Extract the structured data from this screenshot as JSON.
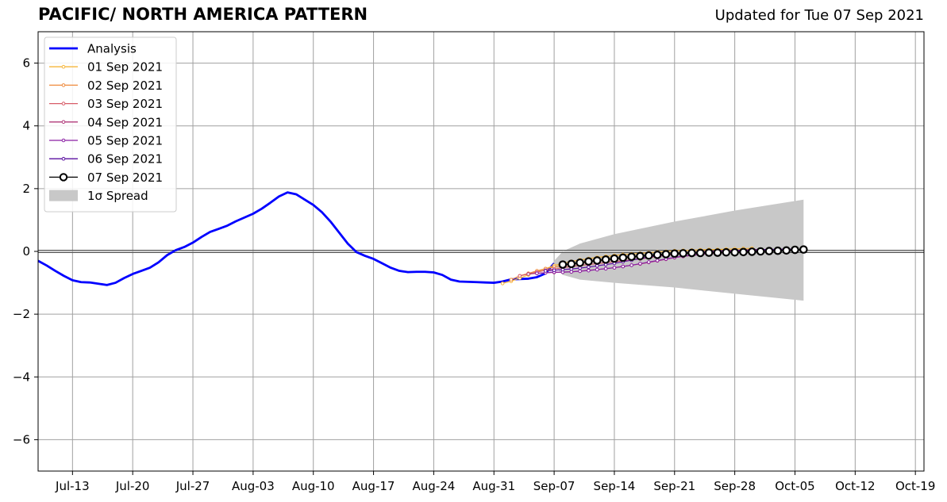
{
  "chart_data": {
    "type": "line",
    "title": "PACIFIC/ NORTH AMERICA PATTERN",
    "subtitle": "Updated for Tue 07 Sep 2021",
    "xlabel": "",
    "ylabel": "",
    "x_tick_labels": [
      "Jul-13",
      "Jul-20",
      "Jul-27",
      "Aug-03",
      "Aug-10",
      "Aug-17",
      "Aug-24",
      "Aug-31",
      "Sep-07",
      "Sep-14",
      "Sep-21",
      "Sep-28",
      "Oct-05",
      "Oct-12",
      "Oct-19"
    ],
    "x_tick_dates": [
      "2021-07-13",
      "2021-07-20",
      "2021-07-27",
      "2021-08-03",
      "2021-08-10",
      "2021-08-17",
      "2021-08-24",
      "2021-08-31",
      "2021-09-07",
      "2021-09-14",
      "2021-09-21",
      "2021-09-28",
      "2021-10-05",
      "2021-10-12",
      "2021-10-19"
    ],
    "xlim": [
      "2021-07-09",
      "2021-10-20"
    ],
    "ylim": [
      -7,
      7
    ],
    "y_ticks": [
      -6,
      -4,
      -2,
      0,
      2,
      4,
      6
    ],
    "y_tick_labels": [
      "−6",
      "−4",
      "−2",
      "0",
      "2",
      "4",
      "6"
    ],
    "grid": true,
    "legend_position": "top-left",
    "legend": [
      "Analysis",
      "01 Sep 2021",
      "02 Sep 2021",
      "03 Sep 2021",
      "04 Sep 2021",
      "05 Sep 2021",
      "06 Sep 2021",
      "07 Sep 2021",
      "1σ Spread"
    ],
    "analysis": {
      "name": "Analysis",
      "color": "#0000ff",
      "start": "2021-07-09",
      "values": [
        -0.3,
        -0.45,
        -0.62,
        -0.78,
        -0.92,
        -0.98,
        -0.99,
        -1.03,
        -1.07,
        -1.0,
        -0.85,
        -0.72,
        -0.62,
        -0.52,
        -0.35,
        -0.12,
        0.04,
        0.14,
        0.28,
        0.46,
        0.62,
        0.72,
        0.82,
        0.96,
        1.08,
        1.2,
        1.36,
        1.55,
        1.75,
        1.88,
        1.82,
        1.65,
        1.48,
        1.25,
        0.95,
        0.6,
        0.25,
        -0.02,
        -0.14,
        -0.24,
        -0.38,
        -0.52,
        -0.62,
        -0.66,
        -0.65,
        -0.65,
        -0.67,
        -0.75,
        -0.9,
        -0.96,
        -0.97,
        -0.98,
        -0.99,
        -1.0,
        -0.96,
        -0.89,
        -0.88,
        -0.87,
        -0.82,
        -0.7,
        -0.38
      ]
    },
    "forecasts": [
      {
        "name": "01 Sep 2021",
        "color": "#f6b63a",
        "start": "2021-09-01",
        "values": [
          -1.02,
          -0.95,
          -0.85,
          -0.75,
          -0.65,
          -0.55,
          -0.45,
          -0.38,
          -0.32,
          -0.27,
          -0.23,
          -0.19,
          -0.16,
          -0.13,
          -0.1,
          -0.08,
          -0.06,
          -0.04,
          -0.02,
          0.0,
          0.02,
          0.03,
          0.04,
          0.05,
          0.06,
          0.06,
          0.07,
          0.08,
          0.09,
          0.1
        ]
      },
      {
        "name": "02 Sep 2021",
        "color": "#ef8a3c",
        "start": "2021-09-02",
        "values": [
          -0.9,
          -0.78,
          -0.7,
          -0.62,
          -0.55,
          -0.5,
          -0.45,
          -0.41,
          -0.38,
          -0.34,
          -0.31,
          -0.28,
          -0.25,
          -0.22,
          -0.19,
          -0.16,
          -0.13,
          -0.1,
          -0.08,
          -0.06,
          -0.04,
          -0.02,
          0.0,
          0.01,
          0.02,
          0.03,
          0.04,
          0.05,
          0.06,
          0.06
        ]
      },
      {
        "name": "03 Sep 2021",
        "color": "#d75c68",
        "start": "2021-09-03",
        "values": [
          -0.78,
          -0.72,
          -0.66,
          -0.6,
          -0.56,
          -0.52,
          -0.48,
          -0.45,
          -0.42,
          -0.39,
          -0.36,
          -0.33,
          -0.3,
          -0.27,
          -0.24,
          -0.2,
          -0.16,
          -0.13,
          -0.1,
          -0.07,
          -0.05,
          -0.03,
          -0.02,
          0.0,
          0.01,
          0.02,
          0.03,
          0.04,
          0.05,
          0.06
        ]
      },
      {
        "name": "04 Sep 2021",
        "color": "#b0397a",
        "start": "2021-09-04",
        "values": [
          -0.72,
          -0.7,
          -0.68,
          -0.67,
          -0.66,
          -0.65,
          -0.63,
          -0.6,
          -0.58,
          -0.55,
          -0.52,
          -0.48,
          -0.44,
          -0.4,
          -0.35,
          -0.3,
          -0.25,
          -0.2,
          -0.16,
          -0.13,
          -0.1,
          -0.08,
          -0.06,
          -0.04,
          -0.02,
          0.0,
          0.01,
          0.02,
          0.03,
          0.04
        ]
      },
      {
        "name": "05 Sep 2021",
        "color": "#8a1fa3",
        "start": "2021-09-05",
        "values": [
          -0.7,
          -0.68,
          -0.66,
          -0.66,
          -0.65,
          -0.63,
          -0.61,
          -0.58,
          -0.55,
          -0.52,
          -0.48,
          -0.44,
          -0.39,
          -0.34,
          -0.29,
          -0.24,
          -0.19,
          -0.15,
          -0.12,
          -0.09,
          -0.06,
          -0.04,
          -0.02,
          0.0,
          0.01,
          0.02,
          0.03,
          0.04,
          0.05,
          0.06
        ]
      },
      {
        "name": "06 Sep 2021",
        "color": "#5a0fa0",
        "start": "2021-09-06",
        "values": [
          -0.62,
          -0.6,
          -0.58,
          -0.56,
          -0.53,
          -0.5,
          -0.46,
          -0.42,
          -0.38,
          -0.33,
          -0.28,
          -0.23,
          -0.18,
          -0.14,
          -0.11,
          -0.08,
          -0.06,
          -0.04,
          -0.02,
          0.0,
          0.01,
          0.02,
          0.03,
          0.04,
          0.05,
          0.06,
          0.06,
          0.07,
          0.07,
          0.08
        ]
      },
      {
        "name": "07 Sep 2021",
        "color": "#000000",
        "start": "2021-09-08",
        "marker": "open-circle",
        "values": [
          -0.42,
          -0.4,
          -0.36,
          -0.32,
          -0.29,
          -0.26,
          -0.23,
          -0.2,
          -0.17,
          -0.15,
          -0.13,
          -0.11,
          -0.09,
          -0.07,
          -0.06,
          -0.05,
          -0.05,
          -0.04,
          -0.04,
          -0.03,
          -0.03,
          -0.02,
          -0.01,
          0.0,
          0.01,
          0.02,
          0.03,
          0.05,
          0.06
        ]
      }
    ],
    "spread": {
      "name": "1σ Spread",
      "color": "#c8c8c8",
      "x": [
        "2021-09-07",
        "2021-09-08",
        "2021-09-10",
        "2021-09-14",
        "2021-09-21",
        "2021-09-28",
        "2021-10-06"
      ],
      "upper": [
        -0.3,
        0.0,
        0.25,
        0.55,
        0.95,
        1.3,
        1.65
      ],
      "lower": [
        -0.45,
        -0.75,
        -0.9,
        -1.0,
        -1.15,
        -1.35,
        -1.57
      ]
    }
  }
}
